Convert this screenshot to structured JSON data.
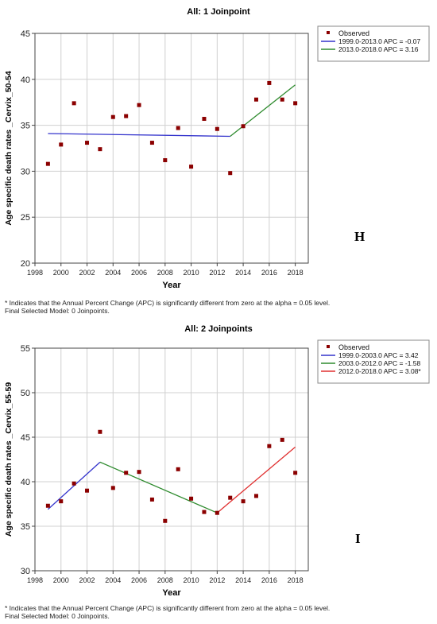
{
  "chart_data": [
    {
      "type": "scatter",
      "title": "All: 1 Joinpoint",
      "xlabel": "Year",
      "ylabel": "Age specific death rates _Cervix_50-54",
      "xlim": [
        1998,
        2019
      ],
      "ylim": [
        20,
        45
      ],
      "xticks": [
        "1998",
        "2000",
        "2002",
        "2004",
        "2006",
        "2008",
        "2010",
        "2012",
        "2014",
        "2016",
        "2018"
      ],
      "yticks": [
        "20",
        "25",
        "30",
        "35",
        "40",
        "45"
      ],
      "grid": true,
      "legend_position": "top-right",
      "observed_label": "Observed",
      "observed_color": "#8b0000",
      "observed": {
        "x": [
          1999,
          2000,
          2001,
          2002,
          2003,
          2004,
          2005,
          2006,
          2007,
          2008,
          2009,
          2010,
          2011,
          2012,
          2013,
          2014,
          2015,
          2016,
          2017,
          2018
        ],
        "y": [
          30.8,
          32.9,
          37.4,
          33.1,
          32.4,
          35.9,
          36.0,
          37.2,
          33.1,
          31.2,
          34.7,
          30.5,
          35.7,
          34.6,
          29.8,
          34.9,
          37.8,
          39.6,
          37.8,
          37.4
        ]
      },
      "segments": [
        {
          "label": "1999.0-2013.0 APC = -0.07",
          "color": "#3333cc",
          "x": [
            1999,
            2013
          ],
          "y": [
            34.1,
            33.8
          ]
        },
        {
          "label": "2013.0-2018.0 APC = 3.16",
          "color": "#2e8b2e",
          "x": [
            2013,
            2018
          ],
          "y": [
            33.8,
            39.4
          ]
        }
      ],
      "panel_letter": "H",
      "footnote_lines": [
        "* Indicates that the Annual Percent Change (APC) is significantly different from zero at the alpha = 0.05 level.",
        "Final Selected Model: 0 Joinpoints."
      ]
    },
    {
      "type": "scatter",
      "title": "All: 2 Joinpoints",
      "xlabel": "Year",
      "ylabel": "Age specific death rates _Cervix_55-59",
      "xlim": [
        1998,
        2019
      ],
      "ylim": [
        30,
        55
      ],
      "xticks": [
        "1998",
        "2000",
        "2002",
        "2004",
        "2006",
        "2008",
        "2010",
        "2012",
        "2014",
        "2016",
        "2018"
      ],
      "yticks": [
        "30",
        "35",
        "40",
        "45",
        "50",
        "55"
      ],
      "grid": true,
      "legend_position": "top-right",
      "observed_label": "Observed",
      "observed_color": "#8b0000",
      "observed": {
        "x": [
          1999,
          2000,
          2001,
          2002,
          2003,
          2004,
          2005,
          2006,
          2007,
          2008,
          2009,
          2010,
          2011,
          2012,
          2013,
          2014,
          2015,
          2016,
          2017,
          2018
        ],
        "y": [
          37.3,
          37.8,
          39.8,
          39.0,
          45.6,
          39.3,
          41.0,
          41.1,
          38.0,
          35.6,
          41.4,
          38.1,
          36.6,
          36.5,
          38.2,
          37.8,
          38.4,
          44.0,
          44.7,
          41.0
        ]
      },
      "segments": [
        {
          "label": "1999.0-2003.0 APC = 3.42",
          "color": "#3333cc",
          "x": [
            1999,
            2003
          ],
          "y": [
            36.9,
            42.2
          ]
        },
        {
          "label": "2003.0-2012.0 APC = -1.58",
          "color": "#2e8b2e",
          "x": [
            2003,
            2012
          ],
          "y": [
            42.2,
            36.5
          ]
        },
        {
          "label": "2012.0-2018.0 APC = 3.08*",
          "color": "#e03030",
          "x": [
            2012,
            2018
          ],
          "y": [
            36.5,
            43.9
          ]
        }
      ],
      "panel_letter": "I",
      "footnote_lines": [
        "* Indicates that the Annual Percent Change (APC) is significantly different from zero at the alpha = 0.05 level.",
        "Final Selected Model: 0 Joinpoints."
      ]
    }
  ]
}
